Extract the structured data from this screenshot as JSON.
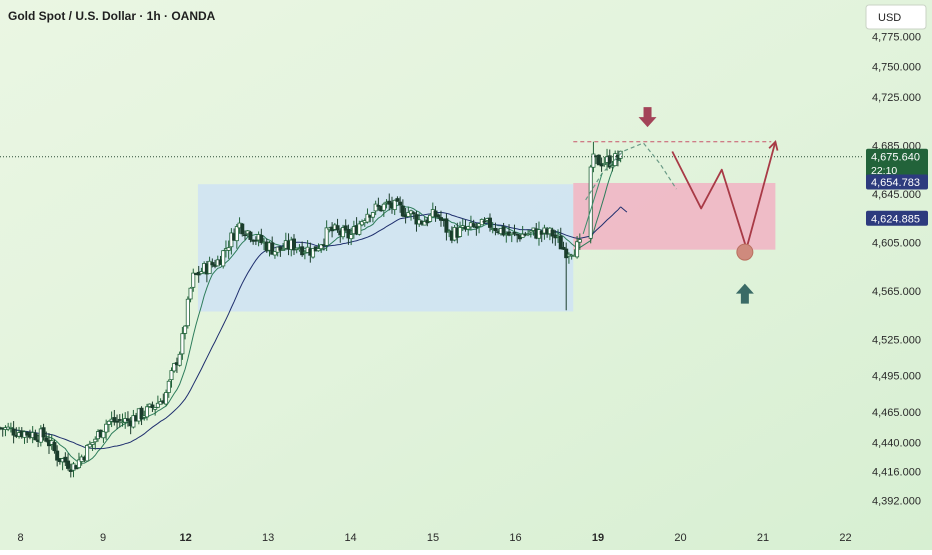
{
  "header": {
    "title": "Gold Spot / U.S. Dollar · 1h · OANDA"
  },
  "toolbar": {
    "currency_label": "USD"
  },
  "colors": {
    "bull": "#22633a",
    "bear": "#1b3d2c",
    "ma_fast": "#2e7d5b",
    "ma_slow": "#1f2f6e",
    "range_box": "#cfe3f3",
    "target_zone": "#efb8c6",
    "arrow_down": "#a34358",
    "arrow_up": "#3a6b66",
    "path": "#a83a46",
    "current_price_tag": "#22633a",
    "label_tag": "#2d3b7e"
  },
  "chart_data": {
    "type": "candlestick",
    "title": "Gold Spot / U.S. Dollar · 1h · OANDA",
    "ylim": [
      4376,
      4800
    ],
    "y_ticks": [
      "4,775.000",
      "4,750.000",
      "4,725.000",
      "4,685.000",
      "4,645.000",
      "4,605.000",
      "4,565.000",
      "4,525.000",
      "4,495.000",
      "4,465.000",
      "4,440.000",
      "4,416.000",
      "4,392.000"
    ],
    "y_tick_values": [
      4775,
      4750,
      4725,
      4685,
      4645,
      4605,
      4565,
      4525,
      4495,
      4465,
      4440,
      4416,
      4392
    ],
    "x_ticks": [
      "8",
      "9",
      "12",
      "13",
      "14",
      "15",
      "16",
      "19",
      "20",
      "21",
      "22"
    ],
    "x_tick_values": [
      0,
      1,
      2,
      3,
      4,
      5,
      6,
      7,
      8,
      9,
      10
    ],
    "x_tick_bold": [
      false,
      false,
      true,
      false,
      false,
      false,
      false,
      true,
      false,
      false,
      false
    ],
    "xlim": [
      -0.25,
      10.2
    ],
    "grid": false,
    "candles_anchor": [
      [
        -0.25,
        4452
      ],
      [
        0.3,
        4445
      ],
      [
        0.45,
        4428
      ],
      [
        0.65,
        4420
      ],
      [
        0.85,
        4438
      ],
      [
        1.05,
        4457
      ],
      [
        1.3,
        4458
      ],
      [
        1.55,
        4466
      ],
      [
        1.75,
        4478
      ],
      [
        1.95,
        4520
      ],
      [
        2.08,
        4575
      ],
      [
        2.2,
        4582
      ],
      [
        2.4,
        4590
      ],
      [
        2.65,
        4620
      ],
      [
        2.9,
        4606
      ],
      [
        3.1,
        4598
      ],
      [
        3.3,
        4603
      ],
      [
        3.55,
        4598
      ],
      [
        3.75,
        4615
      ],
      [
        4.0,
        4610
      ],
      [
        4.2,
        4630
      ],
      [
        4.45,
        4636
      ],
      [
        4.7,
        4630
      ],
      [
        4.85,
        4622
      ],
      [
        5.05,
        4628
      ],
      [
        5.2,
        4612
      ],
      [
        5.45,
        4616
      ],
      [
        5.7,
        4620
      ],
      [
        5.95,
        4610
      ],
      [
        6.2,
        4613
      ],
      [
        6.45,
        4612
      ],
      [
        6.6,
        4598
      ],
      [
        6.8,
        4602
      ],
      [
        6.92,
        4672
      ],
      [
        7.15,
        4672
      ],
      [
        7.3,
        4676
      ]
    ],
    "price_labels": [
      {
        "value": 4675.64,
        "text": "4,675.640",
        "sub": "22:10",
        "kind": "current"
      },
      {
        "value": 4654.783,
        "text": "4,654.783",
        "kind": "marker"
      },
      {
        "value": 4624.885,
        "text": "4,624.885",
        "kind": "marker"
      }
    ],
    "current_price": 4675.64,
    "zones": [
      {
        "kind": "range",
        "x0": 2.15,
        "x1": 6.7,
        "y0": 4548,
        "y1": 4653
      },
      {
        "kind": "target",
        "x0": 6.7,
        "x1": 9.15,
        "y0": 4599,
        "y1": 4654
      }
    ],
    "resistance": {
      "y": 4688,
      "x0": 6.7,
      "x1": 9.1
    },
    "projection_curve": [
      [
        6.85,
        4640
      ],
      [
        7.05,
        4662
      ],
      [
        7.3,
        4680
      ],
      [
        7.55,
        4687
      ],
      [
        7.75,
        4670
      ],
      [
        7.95,
        4649
      ]
    ],
    "projection_path": [
      [
        7.9,
        4680
      ],
      [
        8.25,
        4633
      ],
      [
        8.5,
        4665
      ],
      [
        8.8,
        4600
      ],
      [
        9.15,
        4688
      ]
    ],
    "circle_point": [
      8.78,
      4597
    ],
    "arrow_down": [
      7.6,
      4705
    ],
    "arrow_up": [
      8.78,
      4566
    ]
  }
}
